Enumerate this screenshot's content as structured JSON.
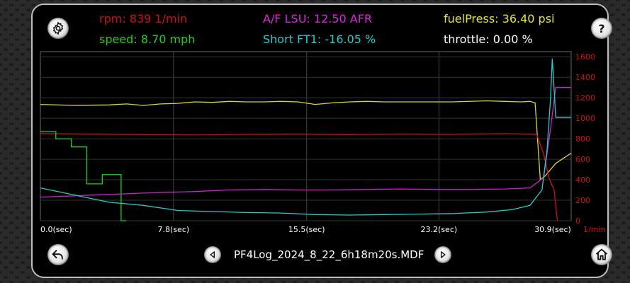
{
  "readouts": {
    "rpm": {
      "text": "rpm: 839 1/min",
      "color": "#d01010"
    },
    "speed": {
      "text": "speed: 8.70 mph",
      "color": "#22cc22"
    },
    "af": {
      "text": "A/F LSU: 12.50 AFR",
      "color": "#dd22dd"
    },
    "ft": {
      "text": "Short FT1: -16.05 %",
      "color": "#22cccc"
    },
    "fuel": {
      "text": "fuelPress: 36.40 psi",
      "color": "#e6e622"
    },
    "throttle": {
      "text": "throttle: 0.00 %",
      "color": "#ffffff"
    }
  },
  "file": {
    "name": "PF4Log_2024_8_22_6h18m20s.MDF"
  },
  "icons": {
    "settings": "gear-icon",
    "help": "question-icon",
    "back": "undo-arrow-icon",
    "prev": "chevron-left-icon",
    "next": "chevron-right-icon",
    "home": "home-icon"
  },
  "chart_data": {
    "type": "line",
    "x_ticks": [
      "0.0(sec)",
      "7.8(sec)",
      "15.5(sec)",
      "23.2(sec)",
      "30.9(sec)"
    ],
    "x_tick_values": [
      0,
      7.75,
      15.5,
      23.2,
      30.9
    ],
    "xlim": [
      0,
      30.9
    ],
    "y_ticks": [
      "0",
      "200",
      "400",
      "600",
      "800",
      "1000",
      "1200",
      "1400",
      "1600"
    ],
    "ylim": [
      0,
      1650
    ],
    "y_unit": "1/min",
    "grid": true,
    "series": [
      {
        "name": "fuelPress",
        "color": "#d8d820",
        "x": [
          0,
          2,
          4,
          5,
          6,
          7,
          8,
          9,
          10,
          11,
          12,
          13,
          14,
          15,
          16,
          17,
          18,
          19,
          20,
          22,
          24,
          26,
          27,
          28,
          28.5,
          28.8,
          29.1,
          29.4,
          30,
          30.9
        ],
        "y": [
          1135,
          1125,
          1130,
          1140,
          1125,
          1140,
          1145,
          1160,
          1155,
          1165,
          1160,
          1160,
          1165,
          1160,
          1135,
          1150,
          1160,
          1165,
          1160,
          1160,
          1160,
          1170,
          1165,
          1160,
          1165,
          1150,
          400,
          440,
          560,
          660
        ]
      },
      {
        "name": "rpm",
        "color": "#d01010",
        "x": [
          0,
          3,
          6,
          9,
          12,
          15,
          18,
          21,
          24,
          27,
          28.5,
          28.9,
          29.3,
          29.6,
          29.9,
          30.1
        ],
        "y": [
          850,
          845,
          840,
          838,
          842,
          845,
          840,
          845,
          842,
          850,
          845,
          840,
          650,
          420,
          300,
          0
        ]
      },
      {
        "name": "speed",
        "color": "#22cc22",
        "x": [
          0,
          0.9,
          0.9,
          1.8,
          1.8,
          2.7,
          2.7,
          3.6,
          3.6,
          4.7,
          4.7,
          5.0
        ],
        "y": [
          870,
          870,
          800,
          800,
          720,
          720,
          360,
          360,
          450,
          450,
          0,
          0
        ]
      },
      {
        "name": "A/F LSU",
        "color": "#cc22cc",
        "x": [
          0,
          3,
          6,
          9,
          11,
          13,
          15,
          17,
          19,
          21,
          23,
          25,
          27,
          28.5,
          29.3,
          29.7,
          30,
          30.9
        ],
        "y": [
          230,
          250,
          270,
          285,
          300,
          305,
          300,
          300,
          305,
          310,
          305,
          305,
          310,
          320,
          420,
          900,
          1300,
          1300
        ]
      },
      {
        "name": "Short FT1",
        "color": "#22cccc",
        "x": [
          0,
          2,
          4,
          6,
          8,
          10,
          12,
          14,
          16,
          18,
          20,
          22,
          24,
          26,
          27.5,
          28.5,
          29.2,
          29.5,
          29.7,
          29.8,
          29.9,
          30.0,
          30.9
        ],
        "y": [
          320,
          250,
          180,
          150,
          100,
          90,
          80,
          75,
          60,
          55,
          60,
          65,
          70,
          85,
          110,
          150,
          300,
          700,
          1200,
          1580,
          1300,
          1010,
          1010
        ]
      }
    ]
  }
}
